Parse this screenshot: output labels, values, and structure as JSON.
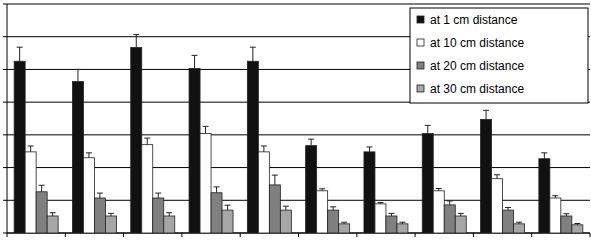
{
  "chart_data": {
    "type": "bar",
    "categories": [
      null,
      null,
      null,
      null,
      null,
      null,
      null,
      null,
      null,
      null
    ],
    "ylim": [
      0,
      7
    ],
    "yticks": [
      0,
      1,
      2,
      3,
      4,
      5,
      6,
      7
    ],
    "grid": true,
    "legend": "upper right",
    "tick_labels": false,
    "series": [
      {
        "name": "at 1 cm distance",
        "color": "#111111",
        "values": [
          5.25,
          4.63,
          5.67,
          5.03,
          5.25,
          2.67,
          2.48,
          3.04,
          3.47,
          2.27
        ],
        "errors": [
          0.43,
          0.37,
          0.4,
          0.4,
          0.43,
          0.2,
          0.15,
          0.25,
          0.28,
          0.18
        ]
      },
      {
        "name": "at 10 cm distance",
        "color": "#ffffff",
        "values": [
          2.48,
          2.3,
          2.7,
          3.04,
          2.48,
          1.29,
          0.89,
          1.29,
          1.66,
          1.07
        ],
        "errors": [
          0.18,
          0.15,
          0.2,
          0.22,
          0.18,
          0.06,
          0.04,
          0.07,
          0.12,
          0.07
        ]
      },
      {
        "name": "at 20 cm distance",
        "color": "#808080",
        "values": [
          1.26,
          1.07,
          1.07,
          1.23,
          1.47,
          0.7,
          0.52,
          0.86,
          0.7,
          0.52
        ],
        "errors": [
          0.2,
          0.15,
          0.15,
          0.18,
          0.3,
          0.1,
          0.08,
          0.12,
          0.08,
          0.07
        ]
      },
      {
        "name": "at 30 cm distance",
        "color": "#a6a6a6",
        "values": [
          0.52,
          0.52,
          0.52,
          0.7,
          0.7,
          0.28,
          0.28,
          0.52,
          0.28,
          0.25
        ],
        "errors": [
          0.1,
          0.08,
          0.1,
          0.15,
          0.12,
          0.05,
          0.05,
          0.08,
          0.05,
          0.04
        ]
      }
    ]
  }
}
